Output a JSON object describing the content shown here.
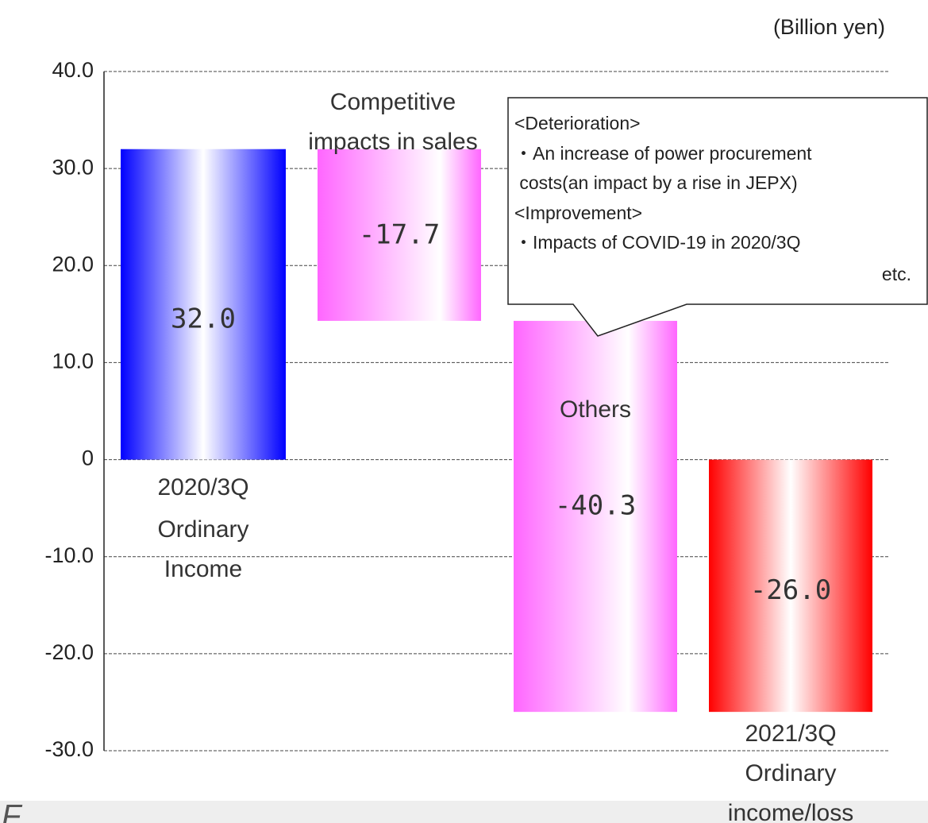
{
  "chart_data": {
    "type": "waterfall",
    "unit": "(Billion yen)",
    "categories": [
      [
        "2020/3Q",
        "Ordinary",
        "Income"
      ],
      [
        "Competitive",
        "impacts in sales"
      ],
      [
        "Others"
      ],
      [
        "2021/3Q",
        "Ordinary",
        "income/loss"
      ]
    ],
    "measure": [
      "absolute",
      "relative",
      "relative",
      "total"
    ],
    "values": [
      32.0,
      -17.7,
      -40.3,
      -26.0
    ],
    "value_labels": [
      "32.0",
      "-17.7",
      "-40.3",
      "-26.0"
    ],
    "colors": [
      "#0000ff",
      "#ff66ff",
      "#ff66ff",
      "#ff0000"
    ],
    "ylim": [
      -30,
      40
    ],
    "yticks": [
      {
        "value": -30,
        "label": "-30.0"
      },
      {
        "value": -20,
        "label": "-20.0"
      },
      {
        "value": -10,
        "label": "-10.0"
      },
      0,
      {
        "value": 10,
        "label": "10.0"
      },
      {
        "value": 20,
        "label": "20.0"
      },
      {
        "value": 30,
        "label": "30.0"
      },
      {
        "value": 40,
        "label": "40.0"
      }
    ],
    "grid": true,
    "annotation": [
      "<Deterioration>",
      "・An increase of power procurement",
      " costs(an impact by a rise in JEPX)",
      "<Improvement>",
      "・Impacts of COVID-19 in 2020/3Q",
      "etc."
    ],
    "footer": "F"
  }
}
